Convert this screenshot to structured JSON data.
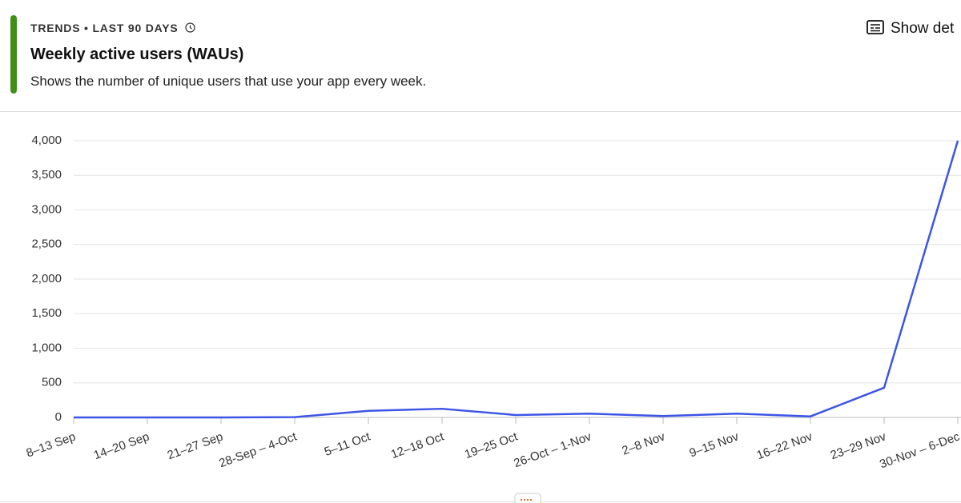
{
  "header": {
    "kicker": "TRENDS • LAST 90 DAYS",
    "title": "Weekly active users (WAUs)",
    "subtitle": "Shows the number of unique users that use your app every week.",
    "details_button": "Show det"
  },
  "chart_data": {
    "type": "line",
    "categories": [
      "8–13 Sep",
      "14–20 Sep",
      "21–27 Sep",
      "28-Sep – 4-Oct",
      "5–11 Oct",
      "12–18 Oct",
      "19–25 Oct",
      "26-Oct – 1-Nov",
      "2–8 Nov",
      "9–15 Nov",
      "16–22 Nov",
      "23–29 Nov",
      "30-Nov – 6-Dec"
    ],
    "series": [
      {
        "name": "WAUs",
        "color": "#3d55e6",
        "values": [
          0,
          0,
          0,
          5,
          95,
          125,
          35,
          55,
          20,
          55,
          15,
          430,
          4000
        ]
      }
    ],
    "ylim": [
      0,
      4000
    ],
    "yticks": [
      0,
      500,
      {
        "value": 1000,
        "label": "1,000"
      },
      {
        "value": 1500,
        "label": "1,500"
      },
      {
        "value": 2000,
        "label": "2,000"
      },
      {
        "value": 2500,
        "label": "2,500"
      },
      {
        "value": 3000,
        "label": "3,000"
      },
      {
        "value": 3500,
        "label": "3,500"
      },
      {
        "value": 4000,
        "label": "4,000"
      }
    ],
    "grid": true
  }
}
